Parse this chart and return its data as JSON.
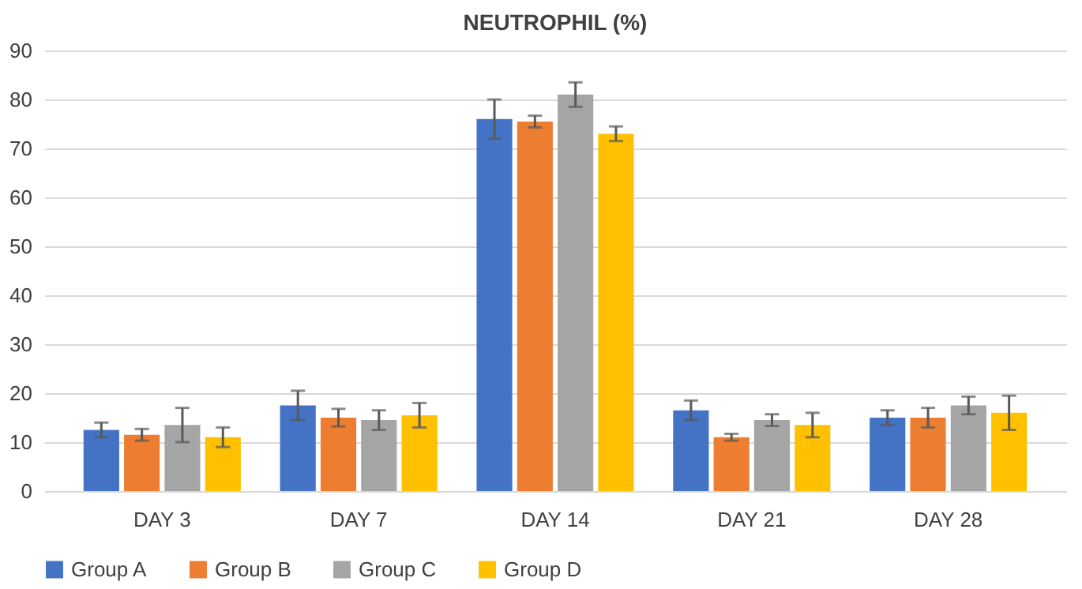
{
  "chart_data": {
    "type": "bar",
    "title": "NEUTROPHIL (%)",
    "categories": [
      "DAY 3",
      "DAY 7",
      "DAY 14",
      "DAY 21",
      "DAY 28"
    ],
    "series": [
      {
        "name": "Group A",
        "color": "#4472c4",
        "values": [
          12.5,
          17.5,
          76,
          16.5,
          15
        ],
        "errors": [
          1.5,
          3,
          4,
          2,
          1.5
        ]
      },
      {
        "name": "Group B",
        "color": "#ed7d31",
        "values": [
          11.5,
          15,
          75.5,
          11,
          15
        ],
        "errors": [
          1.2,
          1.8,
          1.2,
          0.7,
          2
        ]
      },
      {
        "name": "Group C",
        "color": "#a5a5a5",
        "values": [
          13.5,
          14.5,
          81,
          14.5,
          17.5
        ],
        "errors": [
          3.5,
          2,
          2.5,
          1.2,
          1.8
        ]
      },
      {
        "name": "Group D",
        "color": "#ffc000",
        "values": [
          11,
          15.5,
          73,
          13.5,
          16
        ],
        "errors": [
          2,
          2.5,
          1.5,
          2.5,
          3.5
        ]
      }
    ],
    "ylim": [
      0,
      90
    ],
    "yticks": [
      0,
      10,
      20,
      30,
      40,
      50,
      60,
      70,
      80,
      90
    ],
    "grid": "y",
    "legend": "bottom"
  }
}
